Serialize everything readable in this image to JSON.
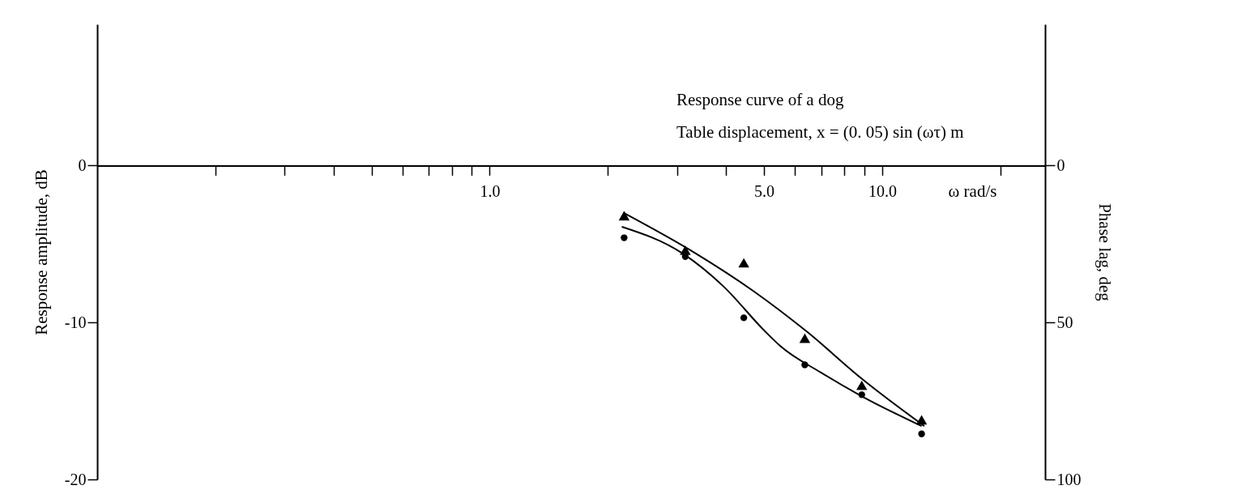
{
  "chart_data": {
    "type": "scatter",
    "title": "Response curve of a dog",
    "subtitle": "Table displacement,  x = (0. 05) sin (ωτ) m",
    "xlabel": "ω rad/s",
    "ylabel": "Response amplitude,  dB",
    "y2label": "Phase lag,  deg",
    "log": "x",
    "xlim": [
      0.1,
      26
    ],
    "xticks": [
      {
        "value": 0.2,
        "label": null
      },
      {
        "value": 0.3,
        "label": null
      },
      {
        "value": 0.4,
        "label": null
      },
      {
        "value": 0.5,
        "label": null
      },
      {
        "value": 0.6,
        "label": null
      },
      {
        "value": 0.7,
        "label": null
      },
      {
        "value": 0.8,
        "label": null
      },
      {
        "value": 0.9,
        "label": null
      },
      {
        "value": 1,
        "label": "1.0"
      },
      {
        "value": 2,
        "label": null
      },
      {
        "value": 3,
        "label": null
      },
      {
        "value": 4,
        "label": null
      },
      {
        "value": 5,
        "label": "5.0"
      },
      {
        "value": 6,
        "label": null
      },
      {
        "value": 7,
        "label": null
      },
      {
        "value": 8,
        "label": null
      },
      {
        "value": 9,
        "label": null
      },
      {
        "value": 10,
        "label": "10.0"
      },
      {
        "value": 20,
        "label": null
      }
    ],
    "ylim": [
      -20,
      9
    ],
    "yticks": [
      0,
      -10,
      -20
    ],
    "y2lim": [
      100,
      -45
    ],
    "y2ticks": [
      0,
      50,
      100
    ],
    "grid": false,
    "series": [
      {
        "type": "scatter",
        "marker": "circle",
        "color": "#000000",
        "x": [
          2.2,
          3.15,
          4.44,
          6.35,
          8.87,
          12.6
        ],
        "values": [
          -4.6,
          -5.8,
          -9.7,
          -12.7,
          -14.6,
          -17.1
        ]
      },
      {
        "type": "scatter",
        "marker": "triangle",
        "axis": "y2",
        "color": "#000000",
        "x": [
          2.2,
          3.15,
          4.44,
          6.35,
          8.87,
          12.6
        ],
        "values": [
          16,
          27,
          31,
          55,
          70,
          81
        ]
      },
      {
        "type": "line",
        "marker": "none",
        "color": "#000000",
        "x": [
          2.17,
          3.1,
          3.94,
          5.0,
          5.5,
          6.99,
          8.87,
          12.6
        ],
        "values": [
          -3.9,
          -5.6,
          -7.7,
          -10.5,
          -11.5,
          -13.2,
          -14.7,
          -16.6
        ]
      },
      {
        "type": "line",
        "marker": "none",
        "axis": "y2",
        "color": "#000000",
        "x": [
          2.19,
          3.25,
          4.7,
          6.44,
          8.89,
          12.8
        ],
        "values": [
          15,
          27,
          40,
          53,
          68,
          83
        ]
      }
    ]
  }
}
